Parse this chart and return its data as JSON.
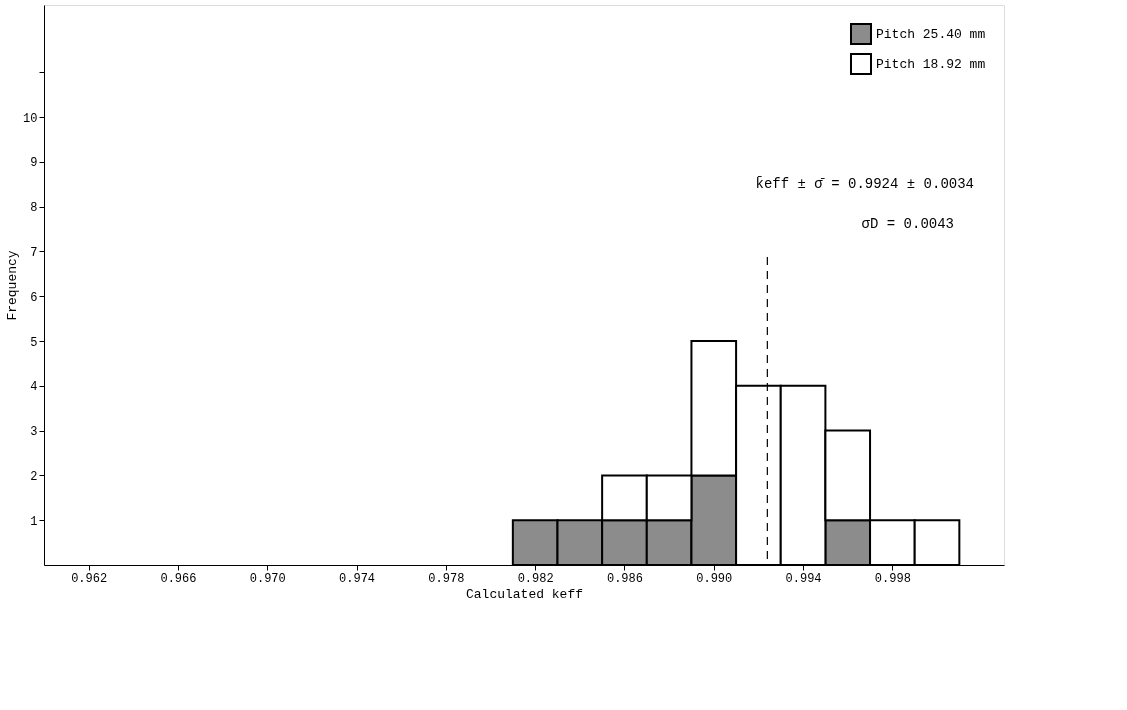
{
  "chart_data": {
    "type": "bar",
    "xlabel": "Calculated keff",
    "ylabel": "Frequency",
    "x": [
      0.982,
      0.984,
      0.986,
      0.988,
      0.99,
      0.992,
      0.994,
      0.996,
      0.998,
      1.0
    ],
    "stacked": true,
    "series": [
      {
        "name": "Pitch 25.40 mm",
        "color": "#8c8c8c",
        "values": [
          1,
          1,
          1,
          1,
          2,
          0,
          0,
          1,
          0,
          0
        ]
      },
      {
        "name": "Pitch 18.92 mm",
        "color": "#ffffff",
        "values": [
          0,
          0,
          1,
          1,
          3,
          4,
          4,
          2,
          1,
          1
        ]
      }
    ],
    "xlim": [
      0.96,
      1.003
    ],
    "xticks": [
      0.962,
      0.966,
      {
        "value": 0.97,
        "label": "0.970"
      },
      0.974,
      0.978,
      0.982,
      0.986,
      {
        "value": 0.99,
        "label": "0.990"
      },
      0.994,
      0.998
    ],
    "ylim": [
      0,
      12.5
    ],
    "yticks": [
      1,
      2,
      3,
      4,
      5,
      6,
      7,
      8,
      9,
      10,
      {
        "value": 11,
        "label": null
      }
    ],
    "ref_lines": [
      {
        "axis": "x",
        "value": 0.9924,
        "line_style": "dashed",
        "color": "#000000"
      }
    ],
    "annotations": [
      "k̄eff ± σ̄ = 0.9924  ± 0.0034",
      "σD = 0.0043"
    ],
    "legend": "top right",
    "grid": false
  }
}
